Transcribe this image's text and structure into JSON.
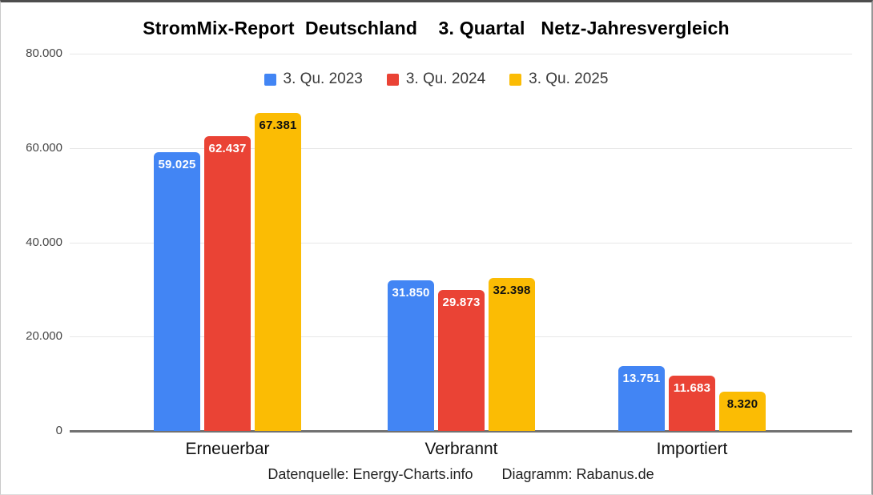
{
  "title": "StromMix-Report  Deutschland    3. Quartal   Netz-Jahresvergleich",
  "footer": {
    "source": "Datenquelle: Energy-Charts.info",
    "diagram": "Diagramm: Rabanus.de"
  },
  "chart_data": {
    "type": "bar",
    "title": "StromMix-Report  Deutschland    3. Quartal   Netz-Jahresvergleich",
    "categories": [
      "Erneuerbar",
      "Verbrannt",
      "Importiert"
    ],
    "series": [
      {
        "name": "3. Qu. 2023",
        "color": "#4285F4",
        "label_color": "#ffffff",
        "values": [
          59025,
          31850,
          13751
        ],
        "labels": [
          "59.025",
          "31.850",
          "13.751"
        ]
      },
      {
        "name": "3. Qu. 2024",
        "color": "#EA4335",
        "label_color": "#ffffff",
        "values": [
          62437,
          29873,
          11683
        ],
        "labels": [
          "62.437",
          "29.873",
          "11.683"
        ]
      },
      {
        "name": "3. Qu. 2025",
        "color": "#FBBC04",
        "label_color": "#111111",
        "values": [
          67381,
          32398,
          8320
        ],
        "labels": [
          "67.381",
          "32.398",
          "8.320"
        ]
      }
    ],
    "yticks": [
      {
        "value": 0,
        "label": "0"
      },
      {
        "value": 20000,
        "label": "20.000"
      },
      {
        "value": 40000,
        "label": "40.000"
      },
      {
        "value": 60000,
        "label": "60.000"
      },
      {
        "value": 80000,
        "label": "80.000"
      }
    ],
    "ylim": [
      0,
      80000
    ],
    "xlabel": "",
    "ylabel": "",
    "grid": true,
    "legend_position": "top"
  }
}
